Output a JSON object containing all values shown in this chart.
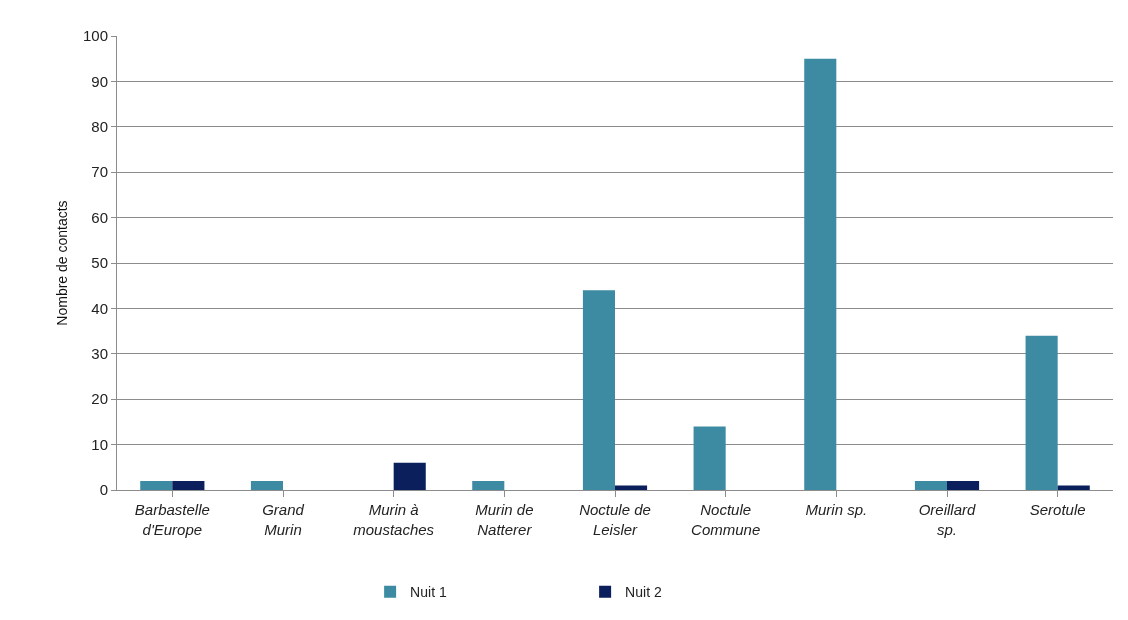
{
  "chart_data": {
    "type": "bar",
    "ylabel": "Nombre de contacts",
    "categories": [
      "Barbastelle d'Europe",
      "Grand Murin",
      "Murin à moustaches",
      "Murin de Natterer",
      "Noctule de Leisler",
      "Noctule Commune",
      "Murin sp.",
      "Oreillard sp.",
      "Serotule"
    ],
    "series": [
      {
        "name": "Nuit 1",
        "color": "#3d8ba2",
        "values": [
          2,
          2,
          0,
          2,
          44,
          14,
          95,
          2,
          34
        ]
      },
      {
        "name": "Nuit 2",
        "color": "#0a1f5c",
        "values": [
          2,
          0,
          6,
          0,
          1,
          0,
          0,
          2,
          1
        ]
      }
    ],
    "ylim": [
      0,
      100
    ],
    "yticks": [
      0,
      10,
      20,
      30,
      40,
      50,
      60,
      70,
      80,
      90,
      100
    ],
    "grid": "y",
    "legend": "bottom"
  }
}
